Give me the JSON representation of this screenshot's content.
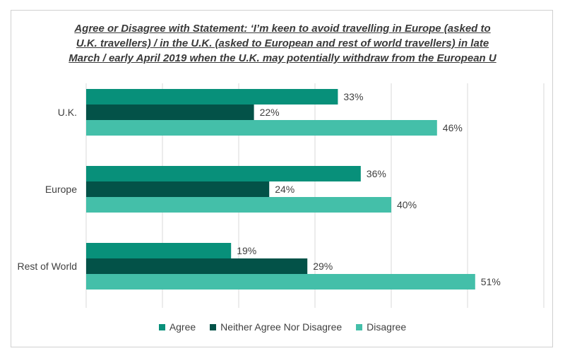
{
  "chart_data": {
    "type": "bar",
    "orientation": "horizontal",
    "title": "Agree or Disagree with Statement: ‘I’m keen to avoid travelling in Europe (asked to U.K. travellers) / in the U.K. (asked to European and rest of world travellers) in late March / early April 2019 when the U.K. may potentially withdraw from the European U",
    "categories": [
      "U.K.",
      "Europe",
      "Rest of World"
    ],
    "series": [
      {
        "name": "Agree",
        "color": "#08907a",
        "values": [
          33,
          36,
          19
        ]
      },
      {
        "name": "Neither Agree Nor Disagree",
        "color": "#035248",
        "values": [
          22,
          24,
          29
        ]
      },
      {
        "name": "Disagree",
        "color": "#44bfa9",
        "values": [
          46,
          40,
          51
        ]
      }
    ],
    "value_suffix": "%",
    "xlim": [
      0,
      60
    ],
    "grid": true,
    "legend_position": "bottom"
  }
}
